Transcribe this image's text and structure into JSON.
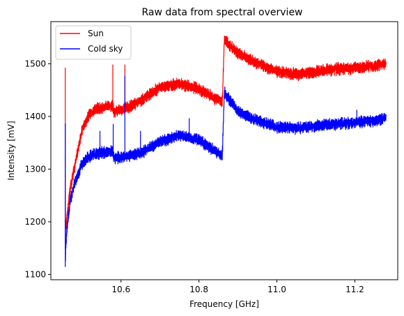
{
  "chart_data": {
    "type": "line",
    "title": "Raw data from spectral overview",
    "xlabel": "Frequency [GHz]",
    "ylabel": "Intensity [mV]",
    "xlim": [
      10.42,
      11.31
    ],
    "ylim": [
      1090,
      1580
    ],
    "xticks": [
      10.6,
      10.8,
      11.0,
      11.2
    ],
    "xtick_labels": [
      "10.6",
      "10.8",
      "11.0",
      "11.2"
    ],
    "yticks": [
      1100,
      1200,
      1300,
      1400,
      1500
    ],
    "ytick_labels": [
      "1100",
      "1200",
      "1300",
      "1400",
      "1500"
    ],
    "grid": false,
    "legend_position": "top-left",
    "noise_amplitude_mv": 10,
    "series": [
      {
        "name": "Sun",
        "color": "#ff0000",
        "x": [
          10.457,
          10.458,
          10.462,
          10.47,
          10.48,
          10.5,
          10.52,
          10.54,
          10.56,
          10.578,
          10.582,
          10.6,
          10.62,
          10.65,
          10.7,
          10.75,
          10.8,
          10.84,
          10.86,
          10.865,
          10.9,
          10.95,
          11.0,
          11.05,
          11.1,
          11.15,
          11.2,
          11.25,
          11.28
        ],
        "y": [
          1160,
          1185,
          1215,
          1265,
          1300,
          1375,
          1405,
          1415,
          1418,
          1420,
          1410,
          1412,
          1418,
          1430,
          1455,
          1462,
          1452,
          1435,
          1430,
          1545,
          1520,
          1500,
          1485,
          1480,
          1485,
          1490,
          1492,
          1496,
          1500
        ],
        "spikes": [
          {
            "x": 10.457,
            "y": 1492
          },
          {
            "x": 10.579,
            "y": 1498
          },
          {
            "x": 10.61,
            "y": 1498
          }
        ]
      },
      {
        "name": "Cold sky",
        "color": "#0000ff",
        "x": [
          10.457,
          10.458,
          10.462,
          10.47,
          10.48,
          10.5,
          10.52,
          10.54,
          10.56,
          10.578,
          10.582,
          10.6,
          10.62,
          10.65,
          10.7,
          10.75,
          10.8,
          10.84,
          10.86,
          10.865,
          10.9,
          10.95,
          11.0,
          11.05,
          11.1,
          11.15,
          11.2,
          11.25,
          11.28
        ],
        "y": [
          1115,
          1150,
          1190,
          1240,
          1270,
          1310,
          1325,
          1330,
          1332,
          1333,
          1322,
          1322,
          1326,
          1330,
          1352,
          1365,
          1355,
          1335,
          1325,
          1445,
          1410,
          1392,
          1380,
          1378,
          1382,
          1386,
          1388,
          1392,
          1398
        ],
        "spikes": [
          {
            "x": 10.457,
            "y": 1386
          },
          {
            "x": 10.546,
            "y": 1372
          },
          {
            "x": 10.58,
            "y": 1385
          },
          {
            "x": 10.61,
            "y": 1476
          },
          {
            "x": 10.65,
            "y": 1372
          },
          {
            "x": 10.775,
            "y": 1396
          },
          {
            "x": 10.922,
            "y": 1398
          },
          {
            "x": 11.205,
            "y": 1412
          }
        ]
      }
    ]
  }
}
